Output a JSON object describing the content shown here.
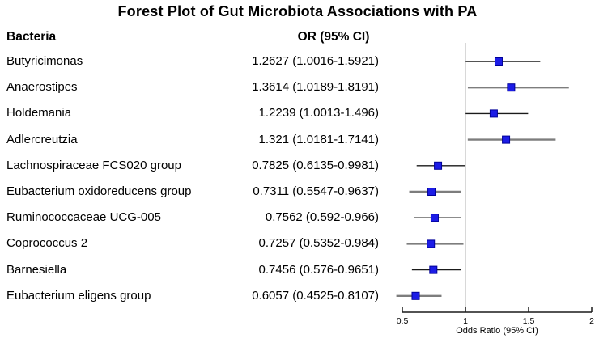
{
  "title": "Forest Plot of Gut Microbiota Associations with PA",
  "columns": {
    "bacteria": "Bacteria",
    "or_ci": "OR (95% CI)"
  },
  "chart_data": {
    "type": "scatter",
    "subtype": "forest-plot",
    "title": "Forest Plot of Gut Microbiota Associations with PA",
    "xlabel": "Odds Ratio (95% CI)",
    "xlim": [
      0.5,
      2
    ],
    "x_ticks": [
      0.5,
      1,
      1.5,
      2
    ],
    "x_tick_labels": [
      "0.5",
      "1",
      "1.5",
      "2"
    ],
    "reference_line_x": 1,
    "rows": [
      {
        "name": "Butyricimonas",
        "label": "1.2627 (1.0016-1.5921)",
        "or": 1.2627,
        "lo": 1.0016,
        "hi": 1.5921
      },
      {
        "name": "Anaerostipes",
        "label": "1.3614 (1.0189-1.8191)",
        "or": 1.3614,
        "lo": 1.0189,
        "hi": 1.8191
      },
      {
        "name": "Holdemania",
        "label": "1.2239 (1.0013-1.496)",
        "or": 1.2239,
        "lo": 1.0013,
        "hi": 1.496
      },
      {
        "name": "Adlercreutzia",
        "label": "1.321 (1.0181-1.7141)",
        "or": 1.321,
        "lo": 1.0181,
        "hi": 1.7141
      },
      {
        "name": "Lachnospiraceae FCS020 group",
        "label": "0.7825 (0.6135-0.9981)",
        "or": 0.7825,
        "lo": 0.6135,
        "hi": 0.9981
      },
      {
        "name": "Eubacterium oxidoreducens group",
        "label": "0.7311 (0.5547-0.9637)",
        "or": 0.7311,
        "lo": 0.5547,
        "hi": 0.9637
      },
      {
        "name": "Ruminococcaceae UCG-005",
        "label": "0.7562 (0.592-0.966)",
        "or": 0.7562,
        "lo": 0.592,
        "hi": 0.966
      },
      {
        "name": "Coprococcus 2",
        "label": "0.7257 (0.5352-0.984)",
        "or": 0.7257,
        "lo": 0.5352,
        "hi": 0.984
      },
      {
        "name": "Barnesiella",
        "label": "0.7456 (0.576-0.9651)",
        "or": 0.7456,
        "lo": 0.576,
        "hi": 0.9651
      },
      {
        "name": "Eubacterium eligens group",
        "label": "0.6057 (0.4525-0.8107)",
        "or": 0.6057,
        "lo": 0.4525,
        "hi": 0.8107
      }
    ],
    "colors": {
      "marker_fill": "#1c1ce6",
      "marker_stroke": "#000099",
      "ci_line_dark": "#1a1a1a",
      "ci_line_gray": "#7d7d7d",
      "reference_line": "#d8d8d8",
      "axis": "#1a1a1a",
      "text": "#000000"
    }
  }
}
